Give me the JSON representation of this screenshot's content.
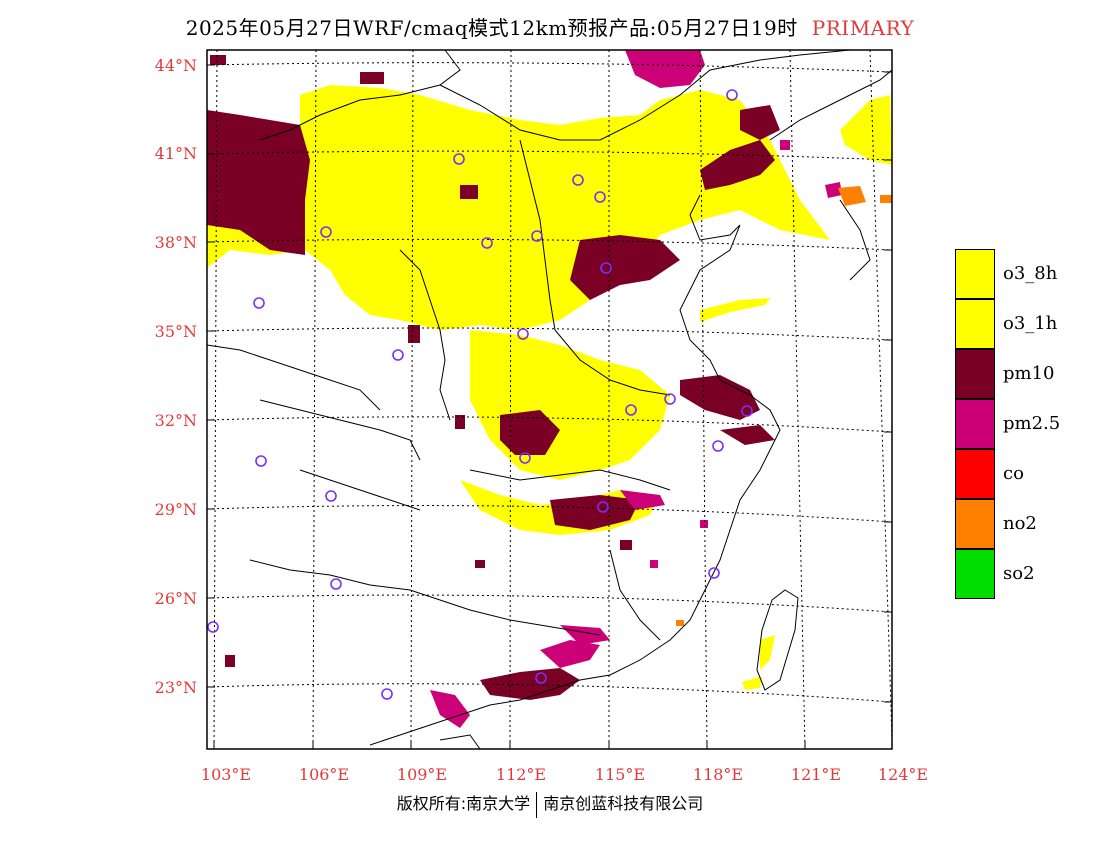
{
  "header": {
    "title": "2025年05月27日WRF/cmaq模式12km预报产品:05月27日19时",
    "tag": "PRIMARY",
    "tag_color": "#e23a3a"
  },
  "axes": {
    "lat_labels": [
      "44°N",
      "41°N",
      "38°N",
      "35°N",
      "32°N",
      "29°N",
      "26°N",
      "23°N"
    ],
    "lon_labels": [
      "103°E",
      "106°E",
      "109°E",
      "112°E",
      "115°E",
      "118°E",
      "121°E",
      "124°E"
    ],
    "label_color": "#e23a3a"
  },
  "legend": {
    "items": [
      {
        "label": "o3_8h",
        "color": "#ffff00"
      },
      {
        "label": "o3_1h",
        "color": "#ffff00"
      },
      {
        "label": "pm10",
        "color": "#7a0026"
      },
      {
        "label": "pm2.5",
        "color": "#cc0077"
      },
      {
        "label": "co",
        "color": "#ff0000"
      },
      {
        "label": "no2",
        "color": "#ff7f00"
      },
      {
        "label": "so2",
        "color": "#00dd00"
      }
    ]
  },
  "footer": {
    "left": "版权所有:南京大学",
    "right": "南京创蓝科技有限公司"
  }
}
